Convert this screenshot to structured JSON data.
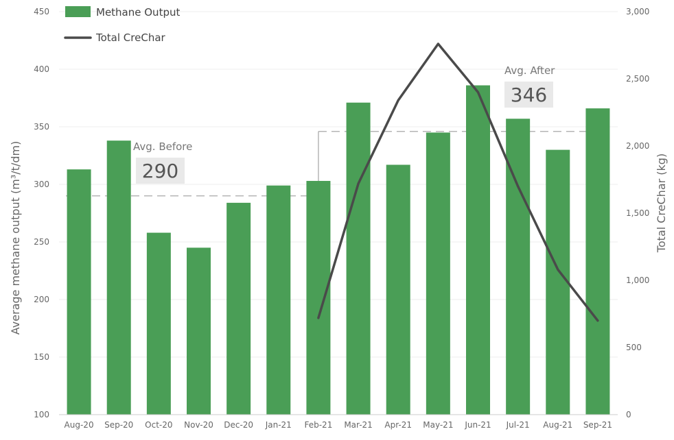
{
  "chart_data": {
    "type": "bar",
    "categories": [
      "Aug-20",
      "Sep-20",
      "Oct-20",
      "Nov-20",
      "Dec-20",
      "Jan-21",
      "Feb-21",
      "Mar-21",
      "Apr-21",
      "May-21",
      "Jun-21",
      "Jul-21",
      "Aug-21",
      "Sep-21"
    ],
    "series": [
      {
        "name": "Methane Output",
        "type": "bar",
        "axis": "left",
        "color": "#4a9e56",
        "values": [
          313,
          338,
          258,
          245,
          284,
          299,
          303,
          371,
          317,
          345,
          386,
          357,
          330,
          366
        ]
      },
      {
        "name": "Total CreChar",
        "type": "line",
        "axis": "right",
        "color": "#4a4a4a",
        "values": [
          null,
          null,
          null,
          null,
          null,
          null,
          720,
          1720,
          2340,
          2760,
          2400,
          1700,
          1080,
          700
        ]
      }
    ],
    "ylabel_left": "Average methane output  (m³/t/dm)",
    "ylabel_right": "Total CreChar (kg)",
    "ylim_left": [
      100,
      450
    ],
    "yticks_left": [
      "100",
      "150",
      "200",
      "250",
      "300",
      "350",
      "400",
      "450"
    ],
    "ylim_right": [
      0,
      3000
    ],
    "yticks_right": [
      "0",
      "500",
      "1,000",
      "1,500",
      "2,000",
      "2,500",
      "3,000"
    ],
    "grid": true,
    "legend_position": "top-left",
    "annotations": {
      "before": {
        "label": "Avg. Before",
        "value_text": "290",
        "value": 290
      },
      "after": {
        "label": "Avg. After",
        "value_text": "346",
        "value": 346
      }
    }
  }
}
